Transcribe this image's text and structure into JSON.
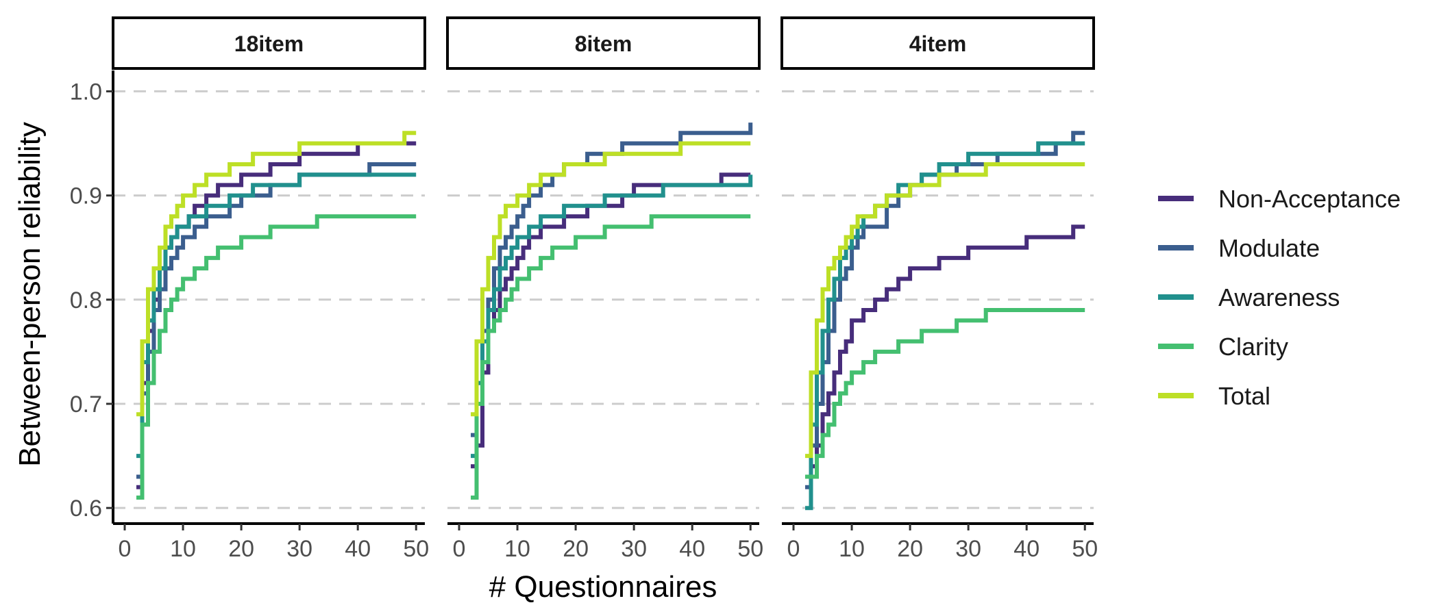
{
  "chart_data": {
    "type": "line",
    "xlabel": "# Questionnaires",
    "ylabel": "Between-person reliability",
    "xlim": [
      0,
      50
    ],
    "ylim": [
      0.585,
      1.02
    ],
    "x_ticks": [
      0,
      10,
      20,
      30,
      40,
      50
    ],
    "y_ticks": [
      0.6,
      0.7,
      0.8,
      0.9,
      1.0
    ],
    "y_tick_labels": [
      "0.6",
      "0.7",
      "0.8",
      "0.9",
      "1.0"
    ],
    "grid": "horizontal dashed major",
    "legend": "right",
    "series_order": [
      "Non-Acceptance",
      "Modulate",
      "Awareness",
      "Clarity",
      "Total"
    ],
    "colors": {
      "Non-Acceptance": "#472d7b",
      "Modulate": "#3b5e8e",
      "Awareness": "#21908d",
      "Clarity": "#44bf70",
      "Total": "#bddf26"
    },
    "panels": [
      {
        "label": "18item",
        "series": [
          {
            "name": "Non-Acceptance",
            "x": [
              2,
              3,
              4,
              5,
              6,
              7,
              8,
              9,
              10,
              11,
              12,
              13,
              14,
              15,
              16,
              18,
              20,
              22,
              25,
              30,
              35,
              40,
              50
            ],
            "y": [
              0.62,
              0.72,
              0.77,
              0.8,
              0.83,
              0.85,
              0.86,
              0.87,
              0.87,
              0.88,
              0.89,
              0.89,
              0.9,
              0.9,
              0.91,
              0.91,
              0.92,
              0.92,
              0.93,
              0.94,
              0.94,
              0.95,
              0.95
            ]
          },
          {
            "name": "Modulate",
            "x": [
              2,
              3,
              4,
              5,
              6,
              7,
              8,
              9,
              10,
              11,
              12,
              14,
              16,
              18,
              20,
              22,
              25,
              30,
              35,
              40,
              42,
              50
            ],
            "y": [
              0.63,
              0.71,
              0.75,
              0.79,
              0.81,
              0.83,
              0.84,
              0.85,
              0.86,
              0.86,
              0.87,
              0.88,
              0.88,
              0.89,
              0.9,
              0.9,
              0.91,
              0.92,
              0.92,
              0.92,
              0.93,
              0.93
            ]
          },
          {
            "name": "Awareness",
            "x": [
              2,
              3,
              4,
              5,
              6,
              7,
              8,
              9,
              10,
              11,
              12,
              14,
              16,
              18,
              20,
              22,
              25,
              30,
              35,
              40,
              45,
              50
            ],
            "y": [
              0.65,
              0.74,
              0.78,
              0.81,
              0.83,
              0.85,
              0.86,
              0.87,
              0.87,
              0.88,
              0.88,
              0.89,
              0.89,
              0.9,
              0.9,
              0.91,
              0.91,
              0.92,
              0.92,
              0.92,
              0.92,
              0.92
            ]
          },
          {
            "name": "Clarity",
            "x": [
              2,
              3,
              4,
              5,
              6,
              7,
              8,
              9,
              10,
              11,
              12,
              14,
              16,
              18,
              20,
              22,
              25,
              28,
              30,
              33,
              40,
              50
            ],
            "y": [
              0.61,
              0.68,
              0.72,
              0.75,
              0.77,
              0.79,
              0.8,
              0.81,
              0.82,
              0.82,
              0.83,
              0.84,
              0.85,
              0.85,
              0.86,
              0.86,
              0.87,
              0.87,
              0.87,
              0.88,
              0.88,
              0.88
            ]
          },
          {
            "name": "Total",
            "x": [
              2,
              3,
              4,
              5,
              6,
              7,
              8,
              9,
              10,
              11,
              12,
              14,
              16,
              18,
              20,
              22,
              25,
              28,
              30,
              35,
              40,
              45,
              48,
              50
            ],
            "y": [
              0.69,
              0.76,
              0.81,
              0.83,
              0.85,
              0.87,
              0.88,
              0.89,
              0.9,
              0.9,
              0.91,
              0.92,
              0.92,
              0.93,
              0.93,
              0.94,
              0.94,
              0.94,
              0.95,
              0.95,
              0.95,
              0.95,
              0.96,
              0.96
            ]
          }
        ]
      },
      {
        "label": "8item",
        "series": [
          {
            "name": "Non-Acceptance",
            "x": [
              2,
              3,
              4,
              5,
              6,
              7,
              8,
              9,
              10,
              11,
              12,
              14,
              16,
              18,
              20,
              22,
              25,
              28,
              30,
              33,
              40,
              45,
              50
            ],
            "y": [
              0.64,
              0.66,
              0.73,
              0.77,
              0.79,
              0.81,
              0.82,
              0.83,
              0.84,
              0.85,
              0.86,
              0.87,
              0.87,
              0.88,
              0.88,
              0.89,
              0.89,
              0.9,
              0.91,
              0.91,
              0.91,
              0.92,
              0.92
            ]
          },
          {
            "name": "Modulate",
            "x": [
              2,
              3,
              4,
              5,
              6,
              7,
              8,
              9,
              10,
              11,
              12,
              14,
              16,
              18,
              20,
              22,
              25,
              28,
              30,
              33,
              35,
              38,
              40,
              45,
              49,
              50
            ],
            "y": [
              0.67,
              0.72,
              0.77,
              0.8,
              0.83,
              0.85,
              0.86,
              0.87,
              0.88,
              0.89,
              0.9,
              0.91,
              0.92,
              0.93,
              0.93,
              0.94,
              0.94,
              0.95,
              0.95,
              0.95,
              0.95,
              0.96,
              0.96,
              0.96,
              0.96,
              0.97
            ]
          },
          {
            "name": "Awareness",
            "x": [
              2,
              3,
              4,
              5,
              6,
              7,
              8,
              9,
              10,
              11,
              12,
              14,
              16,
              18,
              20,
              22,
              25,
              28,
              30,
              35,
              40,
              45,
              49,
              50
            ],
            "y": [
              0.65,
              0.72,
              0.76,
              0.79,
              0.81,
              0.83,
              0.84,
              0.85,
              0.86,
              0.86,
              0.87,
              0.88,
              0.88,
              0.89,
              0.89,
              0.89,
              0.9,
              0.9,
              0.9,
              0.91,
              0.91,
              0.91,
              0.91,
              0.92
            ]
          },
          {
            "name": "Clarity",
            "x": [
              2,
              3,
              4,
              5,
              6,
              7,
              8,
              9,
              10,
              11,
              12,
              14,
              16,
              18,
              20,
              22,
              25,
              28,
              30,
              33,
              40,
              50
            ],
            "y": [
              0.61,
              0.7,
              0.74,
              0.77,
              0.78,
              0.79,
              0.8,
              0.81,
              0.82,
              0.82,
              0.83,
              0.84,
              0.85,
              0.85,
              0.86,
              0.86,
              0.87,
              0.87,
              0.87,
              0.88,
              0.88,
              0.88
            ]
          },
          {
            "name": "Total",
            "x": [
              2,
              3,
              4,
              5,
              6,
              7,
              8,
              9,
              10,
              11,
              12,
              14,
              16,
              18,
              20,
              22,
              25,
              28,
              30,
              35,
              38,
              40,
              45,
              50
            ],
            "y": [
              0.69,
              0.76,
              0.81,
              0.84,
              0.86,
              0.88,
              0.89,
              0.89,
              0.9,
              0.9,
              0.91,
              0.92,
              0.92,
              0.93,
              0.93,
              0.93,
              0.94,
              0.94,
              0.94,
              0.94,
              0.95,
              0.95,
              0.95,
              0.95
            ]
          }
        ]
      },
      {
        "label": "4item",
        "series": [
          {
            "name": "Non-Acceptance",
            "x": [
              2,
              3,
              4,
              5,
              6,
              7,
              8,
              9,
              10,
              11,
              12,
              14,
              16,
              18,
              20,
              22,
              25,
              28,
              30,
              33,
              35,
              40,
              45,
              48,
              50
            ],
            "y": [
              0.63,
              0.64,
              0.66,
              0.69,
              0.71,
              0.73,
              0.75,
              0.76,
              0.78,
              0.78,
              0.79,
              0.8,
              0.81,
              0.82,
              0.83,
              0.83,
              0.84,
              0.84,
              0.85,
              0.85,
              0.85,
              0.86,
              0.86,
              0.87,
              0.87
            ]
          },
          {
            "name": "Modulate",
            "x": [
              2,
              3,
              4,
              5,
              6,
              7,
              8,
              9,
              10,
              11,
              12,
              14,
              16,
              18,
              20,
              22,
              25,
              28,
              30,
              35,
              40,
              45,
              48,
              50
            ],
            "y": [
              0.62,
              0.66,
              0.7,
              0.74,
              0.77,
              0.8,
              0.82,
              0.83,
              0.85,
              0.86,
              0.87,
              0.87,
              0.89,
              0.9,
              0.91,
              0.92,
              0.92,
              0.93,
              0.93,
              0.94,
              0.94,
              0.95,
              0.96,
              0.96
            ]
          },
          {
            "name": "Awareness",
            "x": [
              2,
              3,
              4,
              5,
              6,
              7,
              8,
              9,
              10,
              11,
              12,
              14,
              16,
              18,
              20,
              22,
              25,
              28,
              30,
              35,
              40,
              42,
              45,
              50
            ],
            "y": [
              0.6,
              0.68,
              0.73,
              0.77,
              0.8,
              0.82,
              0.84,
              0.85,
              0.86,
              0.87,
              0.88,
              0.89,
              0.9,
              0.91,
              0.91,
              0.92,
              0.93,
              0.93,
              0.94,
              0.94,
              0.94,
              0.95,
              0.95,
              0.95
            ]
          },
          {
            "name": "Clarity",
            "x": [
              2,
              3,
              4,
              5,
              6,
              7,
              8,
              9,
              10,
              11,
              12,
              14,
              16,
              18,
              20,
              22,
              25,
              28,
              30,
              33,
              40,
              50
            ],
            "y": [
              0.63,
              0.63,
              0.65,
              0.67,
              0.68,
              0.7,
              0.71,
              0.72,
              0.73,
              0.73,
              0.74,
              0.75,
              0.75,
              0.76,
              0.76,
              0.77,
              0.77,
              0.78,
              0.78,
              0.79,
              0.79,
              0.79
            ]
          },
          {
            "name": "Total",
            "x": [
              2,
              3,
              4,
              5,
              6,
              7,
              8,
              9,
              10,
              11,
              12,
              14,
              16,
              18,
              20,
              22,
              25,
              28,
              30,
              33,
              35,
              40,
              45,
              50
            ],
            "y": [
              0.65,
              0.73,
              0.78,
              0.81,
              0.83,
              0.84,
              0.85,
              0.86,
              0.87,
              0.88,
              0.88,
              0.89,
              0.9,
              0.9,
              0.91,
              0.91,
              0.92,
              0.92,
              0.92,
              0.93,
              0.93,
              0.93,
              0.93,
              0.93
            ]
          }
        ]
      }
    ]
  }
}
